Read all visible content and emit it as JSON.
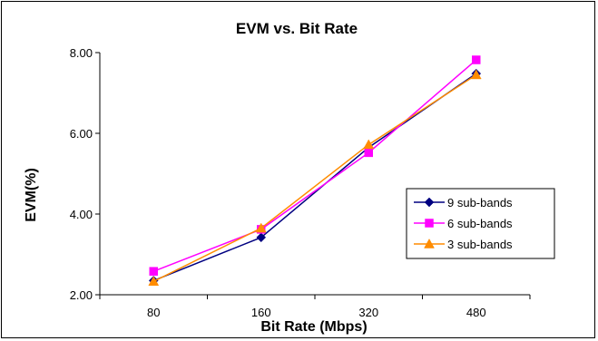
{
  "chart_data": {
    "type": "line",
    "title": "EVM vs. Bit Rate",
    "xlabel": "Bit Rate (Mbps)",
    "ylabel": "EVM(%)",
    "categories": [
      "80",
      "160",
      "320",
      "480"
    ],
    "ylim": [
      2.0,
      8.0
    ],
    "yticks": [
      "2.00",
      "4.00",
      "6.00",
      "8.00"
    ],
    "grid": false,
    "legend_position": "right",
    "series": [
      {
        "name": "9 sub-bands",
        "values": [
          2.35,
          3.42,
          5.65,
          7.48
        ],
        "color": "#000080",
        "marker": "diamond"
      },
      {
        "name": "6 sub-bands",
        "values": [
          2.58,
          3.62,
          5.52,
          7.82
        ],
        "color": "#ff00ff",
        "marker": "square"
      },
      {
        "name": "3 sub-bands",
        "values": [
          2.33,
          3.65,
          5.72,
          7.45
        ],
        "color": "#ff8c00",
        "marker": "triangle"
      }
    ]
  }
}
